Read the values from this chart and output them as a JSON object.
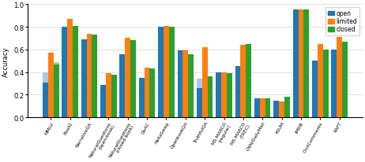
{
  "categories": [
    "MMLU",
    "BooIQ",
    "NarrativeQA",
    "NaturalQuestions\n(open-book)",
    "NaturalQuestions\n(closed-book)",
    "QuAC",
    "HellaSwag",
    "OpenbookQA",
    "TruthfulQA",
    "MS MARCO\n(regular)",
    "MS MARCO\n(TREC)",
    "CNN/DailyMail",
    "XSUM",
    "IMDB",
    "CivilComments",
    "RAFT"
  ],
  "open": [
    0.31,
    0.8,
    0.69,
    0.29,
    0.56,
    0.35,
    0.8,
    0.59,
    0.26,
    0.4,
    0.45,
    0.17,
    0.15,
    0.95,
    0.5,
    0.6
  ],
  "limited": [
    0.57,
    0.87,
    0.74,
    0.39,
    0.7,
    0.44,
    0.81,
    0.59,
    0.62,
    0.4,
    0.64,
    0.17,
    0.14,
    0.95,
    0.65,
    0.71
  ],
  "closed": [
    0.47,
    0.81,
    0.73,
    0.38,
    0.68,
    0.43,
    0.8,
    0.56,
    0.36,
    0.39,
    0.65,
    0.17,
    0.18,
    0.95,
    0.6,
    0.67
  ],
  "open_highlight": [
    0.4,
    null,
    null,
    null,
    null,
    null,
    null,
    null,
    0.34,
    null,
    null,
    null,
    null,
    null,
    null,
    null
  ],
  "closed_highlight": [
    0.49,
    null,
    null,
    null,
    null,
    null,
    null,
    null,
    null,
    null,
    null,
    null,
    null,
    null,
    null,
    null
  ],
  "color_open": "#1f77b4",
  "color_limited": "#ff7f0e",
  "color_closed": "#2ca02c",
  "color_open_light": "#aec7e8",
  "color_closed_light": "#98df8a",
  "ylabel": "Accuracy",
  "ylim": [
    0.0,
    1.0
  ],
  "yticks": [
    0.0,
    0.2,
    0.4,
    0.6,
    0.8,
    1.0
  ],
  "legend_labels": [
    "open",
    "limited",
    "closed"
  ],
  "bar_width": 0.28,
  "figsize": [
    4.62,
    2.07
  ],
  "dpi": 100
}
